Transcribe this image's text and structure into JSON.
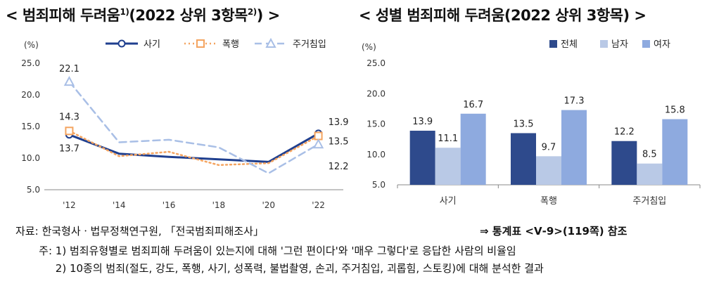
{
  "titles": {
    "left_prefix": "< 범죄피해 두려움",
    "left_sup1": "1)",
    "left_mid": "(2022 상위 3항목",
    "left_sup2": "2)",
    "left_suffix": ") >",
    "right": "< 성별 범죄피해 두려움(2022 상위 3항목) >"
  },
  "chart_data": [
    {
      "type": "line",
      "title": "범죄피해 두려움(2022 상위 3항목)",
      "ylabel": "(%)",
      "ylim": [
        5.0,
        25.0
      ],
      "yticks": [
        "5.0",
        "10.0",
        "15.0",
        "20.0",
        "25.0"
      ],
      "x": [
        "'12",
        "'14",
        "'16",
        "'18",
        "'20",
        "'22"
      ],
      "series": [
        {
          "name": "사기",
          "values": [
            13.7,
            10.7,
            10.2,
            9.8,
            9.4,
            13.9
          ],
          "color": "#1f3f8f"
        },
        {
          "name": "폭행",
          "values": [
            14.3,
            10.3,
            11.0,
            8.9,
            9.2,
            13.5
          ],
          "color": "#f4a460"
        },
        {
          "name": "주거침입",
          "values": [
            22.1,
            12.5,
            12.9,
            11.7,
            7.6,
            12.2
          ],
          "color": "#a9bfe6"
        }
      ],
      "data_labels": [
        {
          "series": "사기",
          "index": 0,
          "text": "13.7"
        },
        {
          "series": "폭행",
          "index": 0,
          "text": "14.3"
        },
        {
          "series": "주거침입",
          "index": 0,
          "text": "22.1"
        },
        {
          "series": "사기",
          "index": 5,
          "text": "13.9"
        },
        {
          "series": "폭행",
          "index": 5,
          "text": "13.5"
        },
        {
          "series": "주거침입",
          "index": 5,
          "text": "12.2"
        }
      ]
    },
    {
      "type": "bar",
      "title": "성별 범죄피해 두려움(2022 상위 3항목)",
      "ylabel": "(%)",
      "ylim": [
        5.0,
        25.0
      ],
      "yticks": [
        "5.0",
        "10.0",
        "15.0",
        "20.0",
        "25.0"
      ],
      "categories": [
        "사기",
        "폭행",
        "주거침입"
      ],
      "series": [
        {
          "name": "전체",
          "values": [
            13.9,
            13.5,
            12.2
          ],
          "color": "#2e4a8c"
        },
        {
          "name": "남자",
          "values": [
            11.1,
            9.7,
            8.5
          ],
          "color": "#b9c9e6"
        },
        {
          "name": "여자",
          "values": [
            16.7,
            17.3,
            15.8
          ],
          "color": "#8eaadf"
        }
      ]
    }
  ],
  "footer": {
    "source_label": "자료:",
    "source_text": "한국형사ㆍ법무정책연구원, 「전국범죄피해조사」",
    "reference": "⇒ 통계표 <Ⅴ-9>(119쪽) 참조",
    "note_label": "주:",
    "note1": "1) 범죄유형별로 범죄피해 두려움이 있는지에 대해 '그런 편이다'와 '매우 그렇다'로 응답한 사람의 비율임",
    "note2": "2) 10종의 범죄(절도, 강도, 폭행, 사기, 성폭력, 불법촬영, 손괴, 주거침입, 괴롭힘, 스토킹)에 대해 분석한 결과"
  }
}
